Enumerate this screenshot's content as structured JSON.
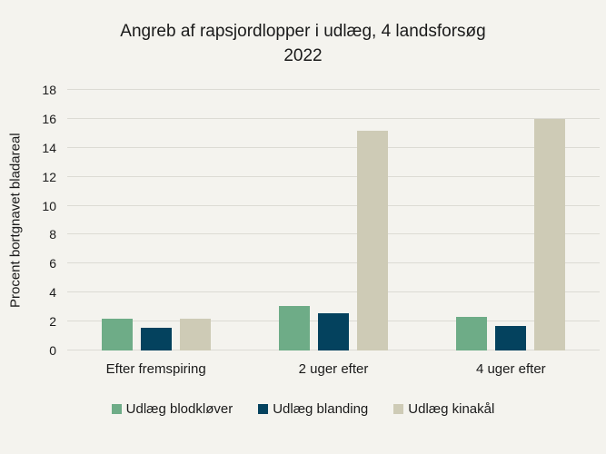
{
  "title_line1": "Angreb af rapsjordlopper i udlæg, 4 landsforsøg",
  "title_line2": "2022",
  "chart_data": {
    "type": "bar",
    "title": "Angreb af rapsjordlopper i udlæg, 4 landsforsøg 2022",
    "xlabel": "",
    "ylabel": "Procent bortgnavet bladareal",
    "categories": [
      "Efter fremspiring",
      "2 uger efter",
      "4 uger efter"
    ],
    "series": [
      {
        "name": "Udlæg blodkløver",
        "color": "#6eac87",
        "values": [
          2.2,
          3.1,
          2.3
        ]
      },
      {
        "name": "Udlæg blanding",
        "color": "#04425e",
        "values": [
          1.6,
          2.6,
          1.7
        ]
      },
      {
        "name": "Udlæg kinakål",
        "color": "#cecbb6",
        "values": [
          2.2,
          15.2,
          16.0
        ]
      }
    ],
    "ylim": [
      0,
      18
    ],
    "ytick_step": 2,
    "grid": true,
    "legend_position": "bottom"
  },
  "colors": {
    "background": "#f4f3ee",
    "gridline": "#dcdbd4",
    "text": "#1a1a1a"
  }
}
